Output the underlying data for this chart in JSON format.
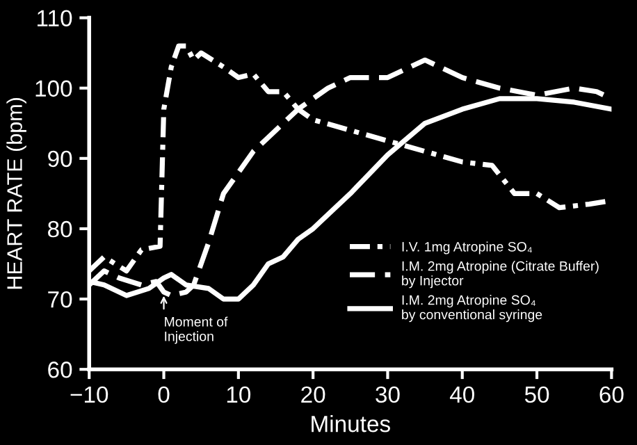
{
  "chart_data": {
    "type": "line",
    "xlabel": "Minutes",
    "ylabel": "HEART RATE (bpm)",
    "xlim": [
      -10,
      60
    ],
    "ylim": [
      60,
      110
    ],
    "xticks": [
      {
        "value": -10,
        "label": "−10"
      },
      0,
      10,
      20,
      30,
      40,
      50,
      60
    ],
    "yticks": [
      60,
      70,
      80,
      90,
      100,
      110
    ],
    "grid": false,
    "legend": "bottom right",
    "marker": "none",
    "annotations": [
      {
        "text": "Moment of\nInjection",
        "x": 0,
        "y": 71
      }
    ],
    "series": [
      {
        "name": "I.V. 1mg Atropine SO₄",
        "color": "#ffffff",
        "line_style": "dashdot",
        "x": [
          -10,
          -8,
          -5,
          -3,
          -0.5,
          0,
          1,
          2,
          3,
          4,
          5,
          8,
          10,
          12,
          14,
          16,
          18,
          20,
          25,
          30,
          35,
          40,
          44,
          47,
          50,
          53,
          57,
          60
        ],
        "values": [
          74,
          76,
          74,
          77,
          77.5,
          97,
          103,
          106,
          106,
          104,
          105,
          103,
          101.5,
          102,
          99.5,
          99.5,
          97,
          95.5,
          94,
          92.5,
          91,
          89.5,
          89,
          85,
          85,
          83,
          83.5,
          84
        ]
      },
      {
        "name": "I.M. 2mg Atropine (Citrate Buffer)\nby Injector",
        "color": "#ffffff",
        "line_style": "dashed",
        "x": [
          -10,
          -8,
          -6,
          -3,
          -1,
          0,
          1,
          3,
          4,
          6,
          8,
          10,
          12,
          14,
          16,
          18,
          20,
          22,
          25,
          30,
          35,
          40,
          45,
          50,
          55,
          58,
          60
        ],
        "values": [
          72,
          74,
          73,
          72,
          72.5,
          71,
          70.5,
          71,
          72,
          78,
          85,
          88,
          91,
          93,
          95,
          97,
          98.5,
          100,
          101.5,
          101.5,
          104,
          101.5,
          100,
          99,
          100,
          99.5,
          98.5
        ]
      },
      {
        "name": "I.M. 2mg Atropine SO₄\nby conventional syringe",
        "color": "#ffffff",
        "line_style": "solid",
        "x": [
          -10,
          -8,
          -5,
          -2,
          0,
          1,
          3,
          6,
          8,
          10,
          12,
          14,
          16,
          18,
          20,
          22,
          25,
          30,
          35,
          40,
          45,
          50,
          55,
          60
        ],
        "values": [
          72.5,
          72,
          70.5,
          71.5,
          73,
          73.5,
          72,
          71.5,
          70,
          70,
          72,
          75,
          76,
          78.5,
          80,
          82,
          85,
          90.5,
          95,
          97,
          98.5,
          98.5,
          98,
          97
        ]
      }
    ]
  }
}
